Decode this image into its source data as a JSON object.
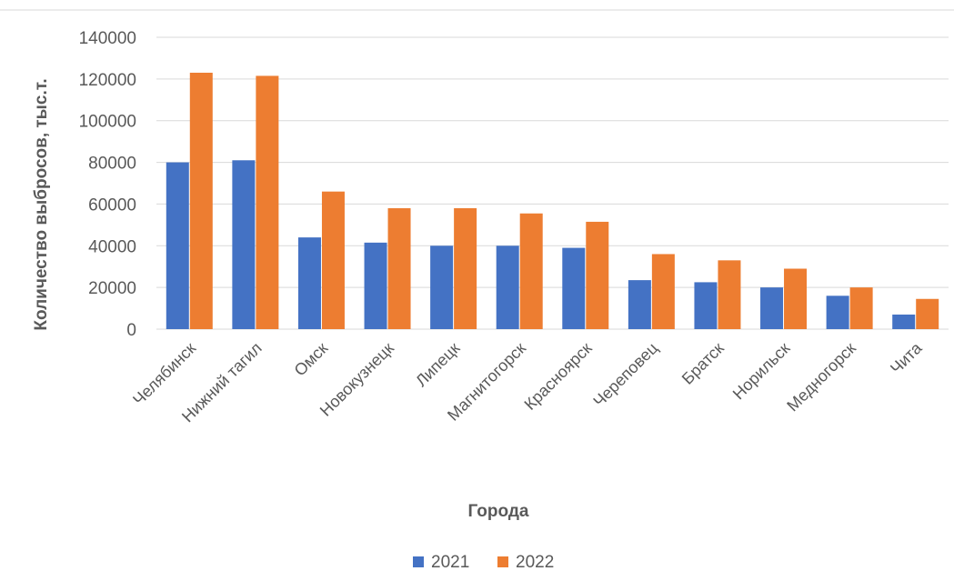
{
  "chart_data": {
    "type": "bar",
    "title": "",
    "xlabel": "Города",
    "ylabel": "Количество выбросов, тыс.т.",
    "ylim": [
      0,
      140000
    ],
    "yticks": [
      0,
      20000,
      40000,
      60000,
      80000,
      100000,
      120000,
      140000
    ],
    "grid": true,
    "legend_position": "bottom",
    "categories": [
      "Челябинск",
      "Нижний тагил",
      "Омск",
      "Новокузнецк",
      "Липецк",
      "Магнитогорск",
      "Красноярск",
      "Череповец",
      "Братск",
      "Норильск",
      "Медногорск",
      "Чита"
    ],
    "series": [
      {
        "name": "2021",
        "color": "#4472c4",
        "values": [
          80000,
          81000,
          44000,
          41500,
          40000,
          40000,
          39000,
          23500,
          22500,
          20000,
          16000,
          7000
        ]
      },
      {
        "name": "2022",
        "color": "#ed7d31",
        "values": [
          123000,
          121500,
          66000,
          58000,
          58000,
          55500,
          51500,
          36000,
          33000,
          29000,
          20000,
          14500
        ]
      }
    ]
  }
}
